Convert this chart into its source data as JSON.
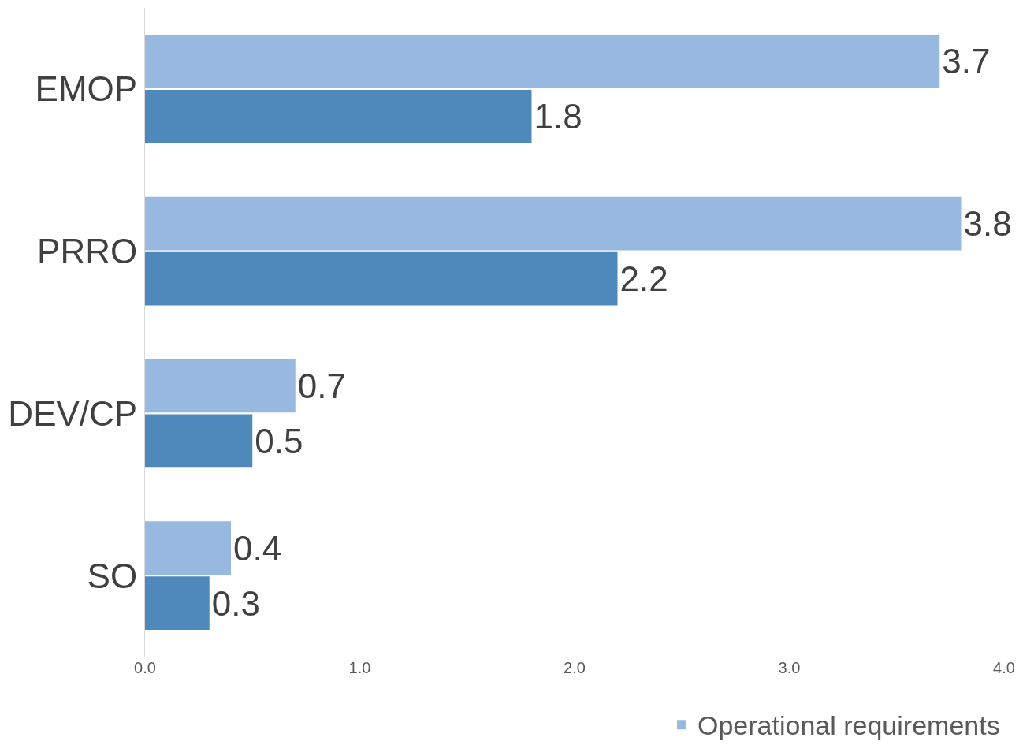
{
  "chart_data": {
    "type": "bar",
    "orientation": "horizontal",
    "categories": [
      "EMOP",
      "PRRO",
      "DEV/CP",
      "SO"
    ],
    "series": [
      {
        "name": "Operational requirements",
        "color": "#97b9e0",
        "values": [
          3.7,
          3.8,
          0.7,
          0.4
        ]
      },
      {
        "color": "#4f88bb",
        "values": [
          1.8,
          2.2,
          0.5,
          0.3
        ]
      }
    ],
    "xlim": [
      0,
      4
    ],
    "xticks": [
      {
        "value": 0,
        "label": "0.0"
      },
      {
        "value": 1,
        "label": "1.0"
      },
      {
        "value": 2,
        "label": "2.0"
      },
      {
        "value": 3,
        "label": "3.0"
      },
      {
        "value": 4,
        "label": "4.0"
      }
    ],
    "data_labels": true,
    "grid": false,
    "legend": "bottom right"
  }
}
